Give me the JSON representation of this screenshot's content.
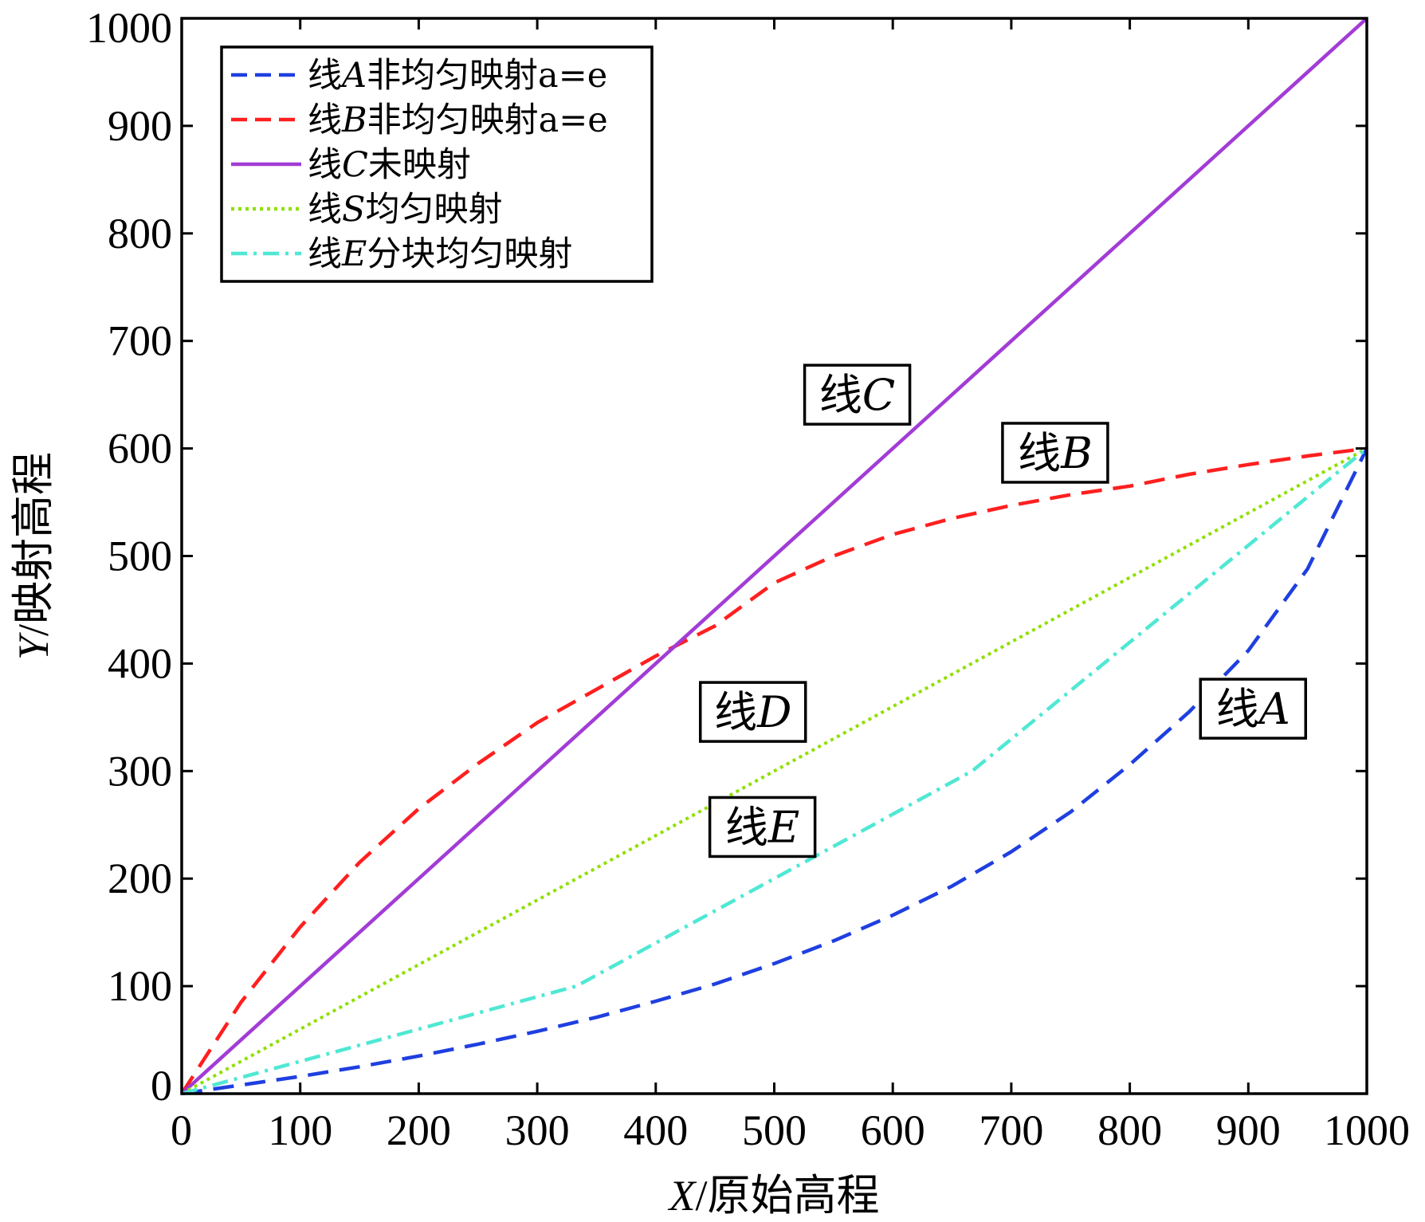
{
  "chart_data": {
    "type": "line",
    "xlabel": {
      "var": "X",
      "text": "/原始高程"
    },
    "ylabel": {
      "var": "Y",
      "text": "/映射高程"
    },
    "xlim": [
      0,
      1000
    ],
    "ylim": [
      0,
      1000
    ],
    "xticks": [
      0,
      100,
      200,
      300,
      400,
      500,
      600,
      700,
      800,
      900,
      1000
    ],
    "yticks": [
      0,
      100,
      200,
      300,
      400,
      500,
      600,
      700,
      800,
      900,
      1000
    ],
    "legend_position": "top-left",
    "series": [
      {
        "key": "A",
        "legend": {
          "prefix": "线",
          "var": "A",
          "suffix": "非均匀映射a=e"
        },
        "color": "#1f3fe0",
        "style": "dashed",
        "x": [
          0,
          50,
          100,
          150,
          200,
          250,
          300,
          350,
          400,
          450,
          500,
          550,
          600,
          650,
          700,
          750,
          800,
          850,
          900,
          950,
          1000
        ],
        "y": [
          0,
          8,
          16,
          25,
          35,
          46,
          58,
          71,
          86,
          102,
          121,
          142,
          166,
          193,
          225,
          262,
          306,
          355,
          412,
          488,
          600
        ]
      },
      {
        "key": "B",
        "legend": {
          "prefix": "线",
          "var": "B",
          "suffix": "非均匀映射a=e"
        },
        "color": "#ff1f1f",
        "style": "dashed",
        "x": [
          0,
          50,
          100,
          150,
          200,
          250,
          300,
          350,
          400,
          450,
          500,
          550,
          600,
          650,
          700,
          750,
          800,
          850,
          900,
          950,
          1000
        ],
        "y": [
          0,
          85,
          155,
          215,
          265,
          307,
          345,
          376,
          407,
          435,
          475,
          500,
          520,
          535,
          547,
          557,
          565,
          576,
          585,
          593,
          600
        ]
      },
      {
        "key": "C",
        "legend": {
          "prefix": "线",
          "var": "C",
          "suffix": "未映射"
        },
        "color": "#a23cd6",
        "style": "solid",
        "x": [
          0,
          1000
        ],
        "y": [
          0,
          1000
        ]
      },
      {
        "key": "S",
        "legend": {
          "prefix": "线",
          "var": "S",
          "suffix": "均匀映射"
        },
        "color": "#8fe000",
        "style": "dotted",
        "x": [
          0,
          1000
        ],
        "y": [
          0,
          600
        ]
      },
      {
        "key": "E",
        "legend": {
          "prefix": "线",
          "var": "E",
          "suffix": "分块均匀映射"
        },
        "color": "#4fe8d4",
        "style": "dashdot",
        "x": [
          0,
          333,
          667,
          1000
        ],
        "y": [
          0,
          100,
          300,
          600
        ]
      }
    ],
    "annotations": [
      {
        "prefix": "线",
        "var": "C",
        "x": 570,
        "y": 650
      },
      {
        "prefix": "线",
        "var": "B",
        "x": 737,
        "y": 596
      },
      {
        "prefix": "线",
        "var": "D",
        "x": 482,
        "y": 355
      },
      {
        "prefix": "线",
        "var": "E",
        "x": 490,
        "y": 248
      },
      {
        "prefix": "线",
        "var": "A",
        "x": 904,
        "y": 358
      }
    ]
  }
}
